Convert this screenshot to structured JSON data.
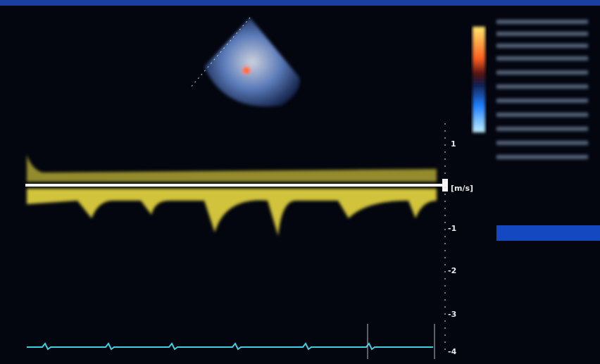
{
  "velocity_scale": {
    "unit": "[m/s]",
    "labels": [
      "1",
      "-1",
      "-2",
      "-3",
      "-4"
    ]
  }
}
